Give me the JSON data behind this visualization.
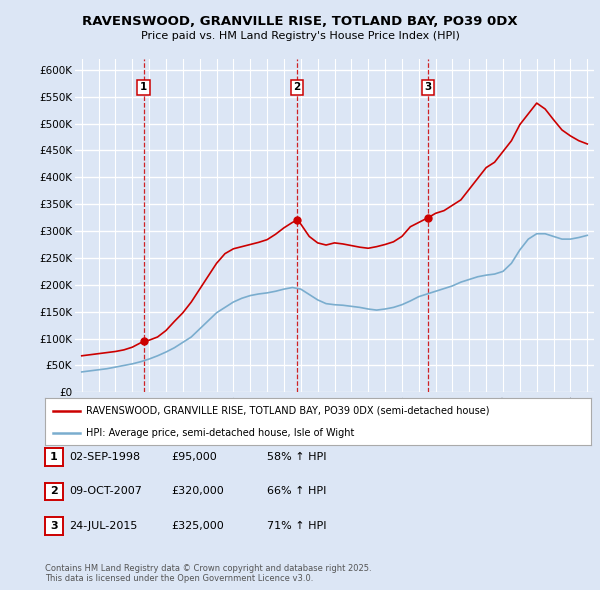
{
  "title": "RAVENSWOOD, GRANVILLE RISE, TOTLAND BAY, PO39 0DX",
  "subtitle": "Price paid vs. HM Land Registry's House Price Index (HPI)",
  "ylim": [
    0,
    620000
  ],
  "yticks": [
    0,
    50000,
    100000,
    150000,
    200000,
    250000,
    300000,
    350000,
    400000,
    450000,
    500000,
    550000,
    600000
  ],
  "ytick_labels": [
    "£0",
    "£50K",
    "£100K",
    "£150K",
    "£200K",
    "£250K",
    "£300K",
    "£350K",
    "£400K",
    "£450K",
    "£500K",
    "£550K",
    "£600K"
  ],
  "xlim_start": 1994.6,
  "xlim_end": 2025.4,
  "background_color": "#dce6f5",
  "plot_bg_color": "#dce6f5",
  "grid_color": "#ffffff",
  "red_line_color": "#cc0000",
  "blue_line_color": "#7aadce",
  "vline_color": "#cc0000",
  "legend_label_red": "RAVENSWOOD, GRANVILLE RISE, TOTLAND BAY, PO39 0DX (semi-detached house)",
  "legend_label_blue": "HPI: Average price, semi-detached house, Isle of Wight",
  "sales": [
    {
      "num": 1,
      "year": 1998.67,
      "price": 95000,
      "date": "02-SEP-1998",
      "pct": "58% ↑ HPI"
    },
    {
      "num": 2,
      "year": 2007.77,
      "price": 320000,
      "date": "09-OCT-2007",
      "pct": "66% ↑ HPI"
    },
    {
      "num": 3,
      "year": 2015.56,
      "price": 325000,
      "date": "24-JUL-2015",
      "pct": "71% ↑ HPI"
    }
  ],
  "footer": "Contains HM Land Registry data © Crown copyright and database right 2025.\nThis data is licensed under the Open Government Licence v3.0.",
  "red_line_x": [
    1995.0,
    1995.5,
    1996.0,
    1996.5,
    1997.0,
    1997.5,
    1998.0,
    1998.67,
    1999.0,
    1999.5,
    2000.0,
    2000.5,
    2001.0,
    2001.5,
    2002.0,
    2002.5,
    2003.0,
    2003.5,
    2004.0,
    2004.5,
    2005.0,
    2005.5,
    2006.0,
    2006.5,
    2007.0,
    2007.5,
    2007.77,
    2008.0,
    2008.5,
    2009.0,
    2009.5,
    2010.0,
    2010.5,
    2011.0,
    2011.5,
    2012.0,
    2012.5,
    2013.0,
    2013.5,
    2014.0,
    2014.5,
    2015.0,
    2015.56,
    2016.0,
    2016.5,
    2017.0,
    2017.5,
    2018.0,
    2018.5,
    2019.0,
    2019.5,
    2020.0,
    2020.5,
    2021.0,
    2021.5,
    2022.0,
    2022.5,
    2023.0,
    2023.5,
    2024.0,
    2024.5,
    2025.0
  ],
  "red_line_y": [
    68000,
    70000,
    72000,
    74000,
    76000,
    79000,
    84000,
    95000,
    97000,
    103000,
    115000,
    132000,
    148000,
    168000,
    192000,
    216000,
    240000,
    258000,
    267000,
    271000,
    275000,
    279000,
    284000,
    294000,
    306000,
    316000,
    320000,
    313000,
    290000,
    278000,
    274000,
    278000,
    276000,
    273000,
    270000,
    268000,
    271000,
    275000,
    280000,
    290000,
    308000,
    316000,
    325000,
    333000,
    338000,
    348000,
    358000,
    378000,
    398000,
    418000,
    428000,
    448000,
    468000,
    498000,
    518000,
    538000,
    527000,
    507000,
    488000,
    477000,
    468000,
    462000
  ],
  "blue_line_x": [
    1995.0,
    1995.5,
    1996.0,
    1996.5,
    1997.0,
    1997.5,
    1998.0,
    1998.5,
    1999.0,
    1999.5,
    2000.0,
    2000.5,
    2001.0,
    2001.5,
    2002.0,
    2002.5,
    2003.0,
    2003.5,
    2004.0,
    2004.5,
    2005.0,
    2005.5,
    2006.0,
    2006.5,
    2007.0,
    2007.5,
    2008.0,
    2008.5,
    2009.0,
    2009.5,
    2010.0,
    2010.5,
    2011.0,
    2011.5,
    2012.0,
    2012.5,
    2013.0,
    2013.5,
    2014.0,
    2014.5,
    2015.0,
    2015.5,
    2016.0,
    2016.5,
    2017.0,
    2017.5,
    2018.0,
    2018.5,
    2019.0,
    2019.5,
    2020.0,
    2020.5,
    2021.0,
    2021.5,
    2022.0,
    2022.5,
    2023.0,
    2023.5,
    2024.0,
    2024.5,
    2025.0
  ],
  "blue_line_y": [
    38000,
    40000,
    42000,
    44000,
    47000,
    50000,
    53000,
    57000,
    62000,
    68000,
    75000,
    83000,
    93000,
    103000,
    118000,
    133000,
    148000,
    158000,
    168000,
    175000,
    180000,
    183000,
    185000,
    188000,
    192000,
    195000,
    192000,
    182000,
    172000,
    165000,
    163000,
    162000,
    160000,
    158000,
    155000,
    153000,
    155000,
    158000,
    163000,
    170000,
    178000,
    183000,
    188000,
    193000,
    198000,
    205000,
    210000,
    215000,
    218000,
    220000,
    225000,
    240000,
    265000,
    285000,
    295000,
    295000,
    290000,
    285000,
    285000,
    288000,
    292000
  ]
}
